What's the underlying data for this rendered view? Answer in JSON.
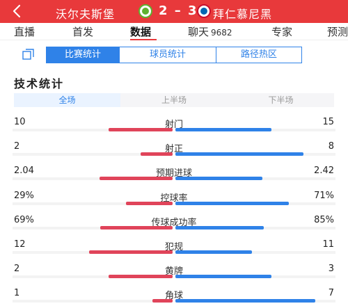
{
  "header": {
    "home_team": "沃尔夫斯堡",
    "away_team": "拜仁慕尼黑",
    "score": "2 – 3",
    "colors": {
      "bg": "#e8393b",
      "home_logo": "#5fb12f",
      "away_logo": "#c8102e"
    }
  },
  "tabs": [
    {
      "label": "直播"
    },
    {
      "label": "首发"
    },
    {
      "label": "数据",
      "active": true
    },
    {
      "label": "聊天",
      "badge": "9682"
    },
    {
      "label": "专家"
    },
    {
      "label": "预测"
    }
  ],
  "segments": [
    {
      "label": "比赛统计",
      "active": true
    },
    {
      "label": "球员统计"
    },
    {
      "label": "路径热区"
    }
  ],
  "section_title": "技术统计",
  "periods": [
    {
      "label": "全场",
      "active": true
    },
    {
      "label": "上半场"
    },
    {
      "label": "下半场"
    }
  ],
  "stats": [
    {
      "label": "射门",
      "home": "10",
      "away": "15",
      "home_share": 0.4,
      "away_share": 0.6
    },
    {
      "label": "射正",
      "home": "2",
      "away": "8",
      "home_share": 0.2,
      "away_share": 0.8
    },
    {
      "label": "预期进球",
      "home": "2.04",
      "away": "2.42",
      "home_share": 0.457,
      "away_share": 0.543
    },
    {
      "label": "控球率",
      "home": "29%",
      "away": "71%",
      "home_share": 0.29,
      "away_share": 0.71
    },
    {
      "label": "传球成功率",
      "home": "69%",
      "away": "85%",
      "home_share": 0.45,
      "away_share": 0.55
    },
    {
      "label": "犯规",
      "home": "12",
      "away": "11",
      "home_share": 0.52,
      "away_share": 0.48
    },
    {
      "label": "黄牌",
      "home": "2",
      "away": "3",
      "home_share": 0.4,
      "away_share": 0.6
    },
    {
      "label": "角球",
      "home": "1",
      "away": "7",
      "home_share": 0.125,
      "away_share": 0.875
    }
  ],
  "colors": {
    "home_bar": "#e0445a",
    "away_bar": "#2f82e8",
    "accent": "#2f82e8"
  }
}
